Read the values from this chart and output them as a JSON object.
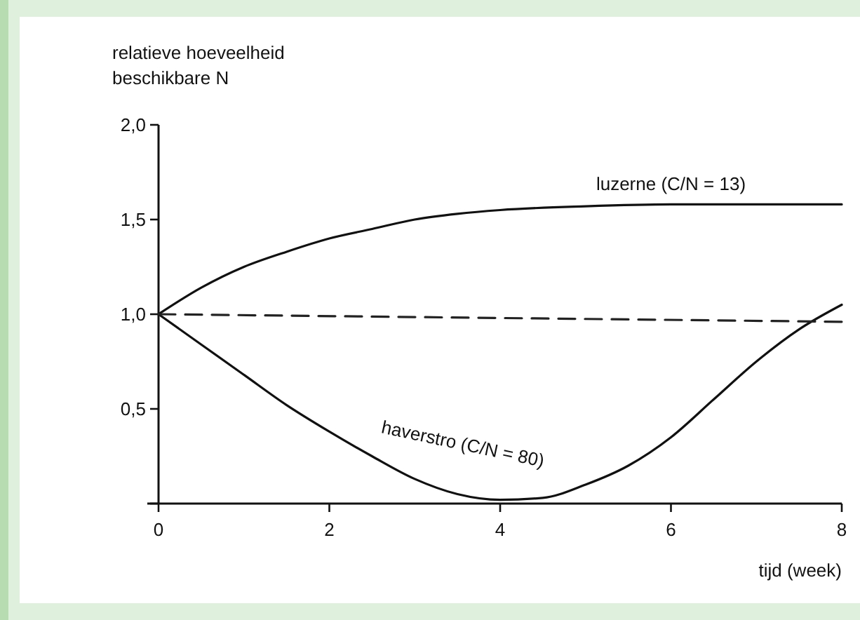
{
  "chart_data": {
    "type": "line",
    "xlabel": "tijd (week)",
    "ylabel": "relatieve hoeveelheid\nbeschikbare N",
    "xlim": [
      0,
      8
    ],
    "xticks": [
      0,
      2,
      4,
      6,
      8
    ],
    "ylim": [
      0,
      2
    ],
    "yticks": [
      {
        "value": 0,
        "label": null
      },
      {
        "value": 0.5,
        "label": "0,5"
      },
      {
        "value": 1,
        "label": "1,0"
      },
      {
        "value": 1.5,
        "label": "1,5"
      },
      {
        "value": 2,
        "label": "2,0"
      }
    ],
    "grid": false,
    "marker": "none",
    "series": [
      {
        "name": "luzerne (C/N = 13)",
        "color": "#111111",
        "line_style": "solid",
        "x": [
          0,
          0.5,
          1,
          1.5,
          2,
          2.5,
          3,
          3.5,
          4,
          5,
          6,
          7,
          8
        ],
        "values": [
          1.0,
          1.14,
          1.25,
          1.33,
          1.4,
          1.45,
          1.5,
          1.53,
          1.55,
          1.57,
          1.58,
          1.58,
          1.58
        ]
      },
      {
        "name": "haverstro (C/N = 80)",
        "color": "#111111",
        "line_style": "solid",
        "x": [
          0,
          0.5,
          1,
          1.5,
          2,
          2.5,
          3,
          3.5,
          4,
          4.5,
          5,
          5.5,
          6,
          6.5,
          7,
          7.5,
          8
        ],
        "values": [
          1.0,
          0.84,
          0.68,
          0.52,
          0.38,
          0.25,
          0.13,
          0.05,
          0.02,
          0.03,
          0.1,
          0.2,
          0.35,
          0.55,
          0.75,
          0.92,
          1.05
        ]
      },
      {
        "color": "#222222",
        "line_style": "dashed",
        "x": [
          0,
          8
        ],
        "values": [
          1.0,
          0.96
        ]
      }
    ]
  }
}
